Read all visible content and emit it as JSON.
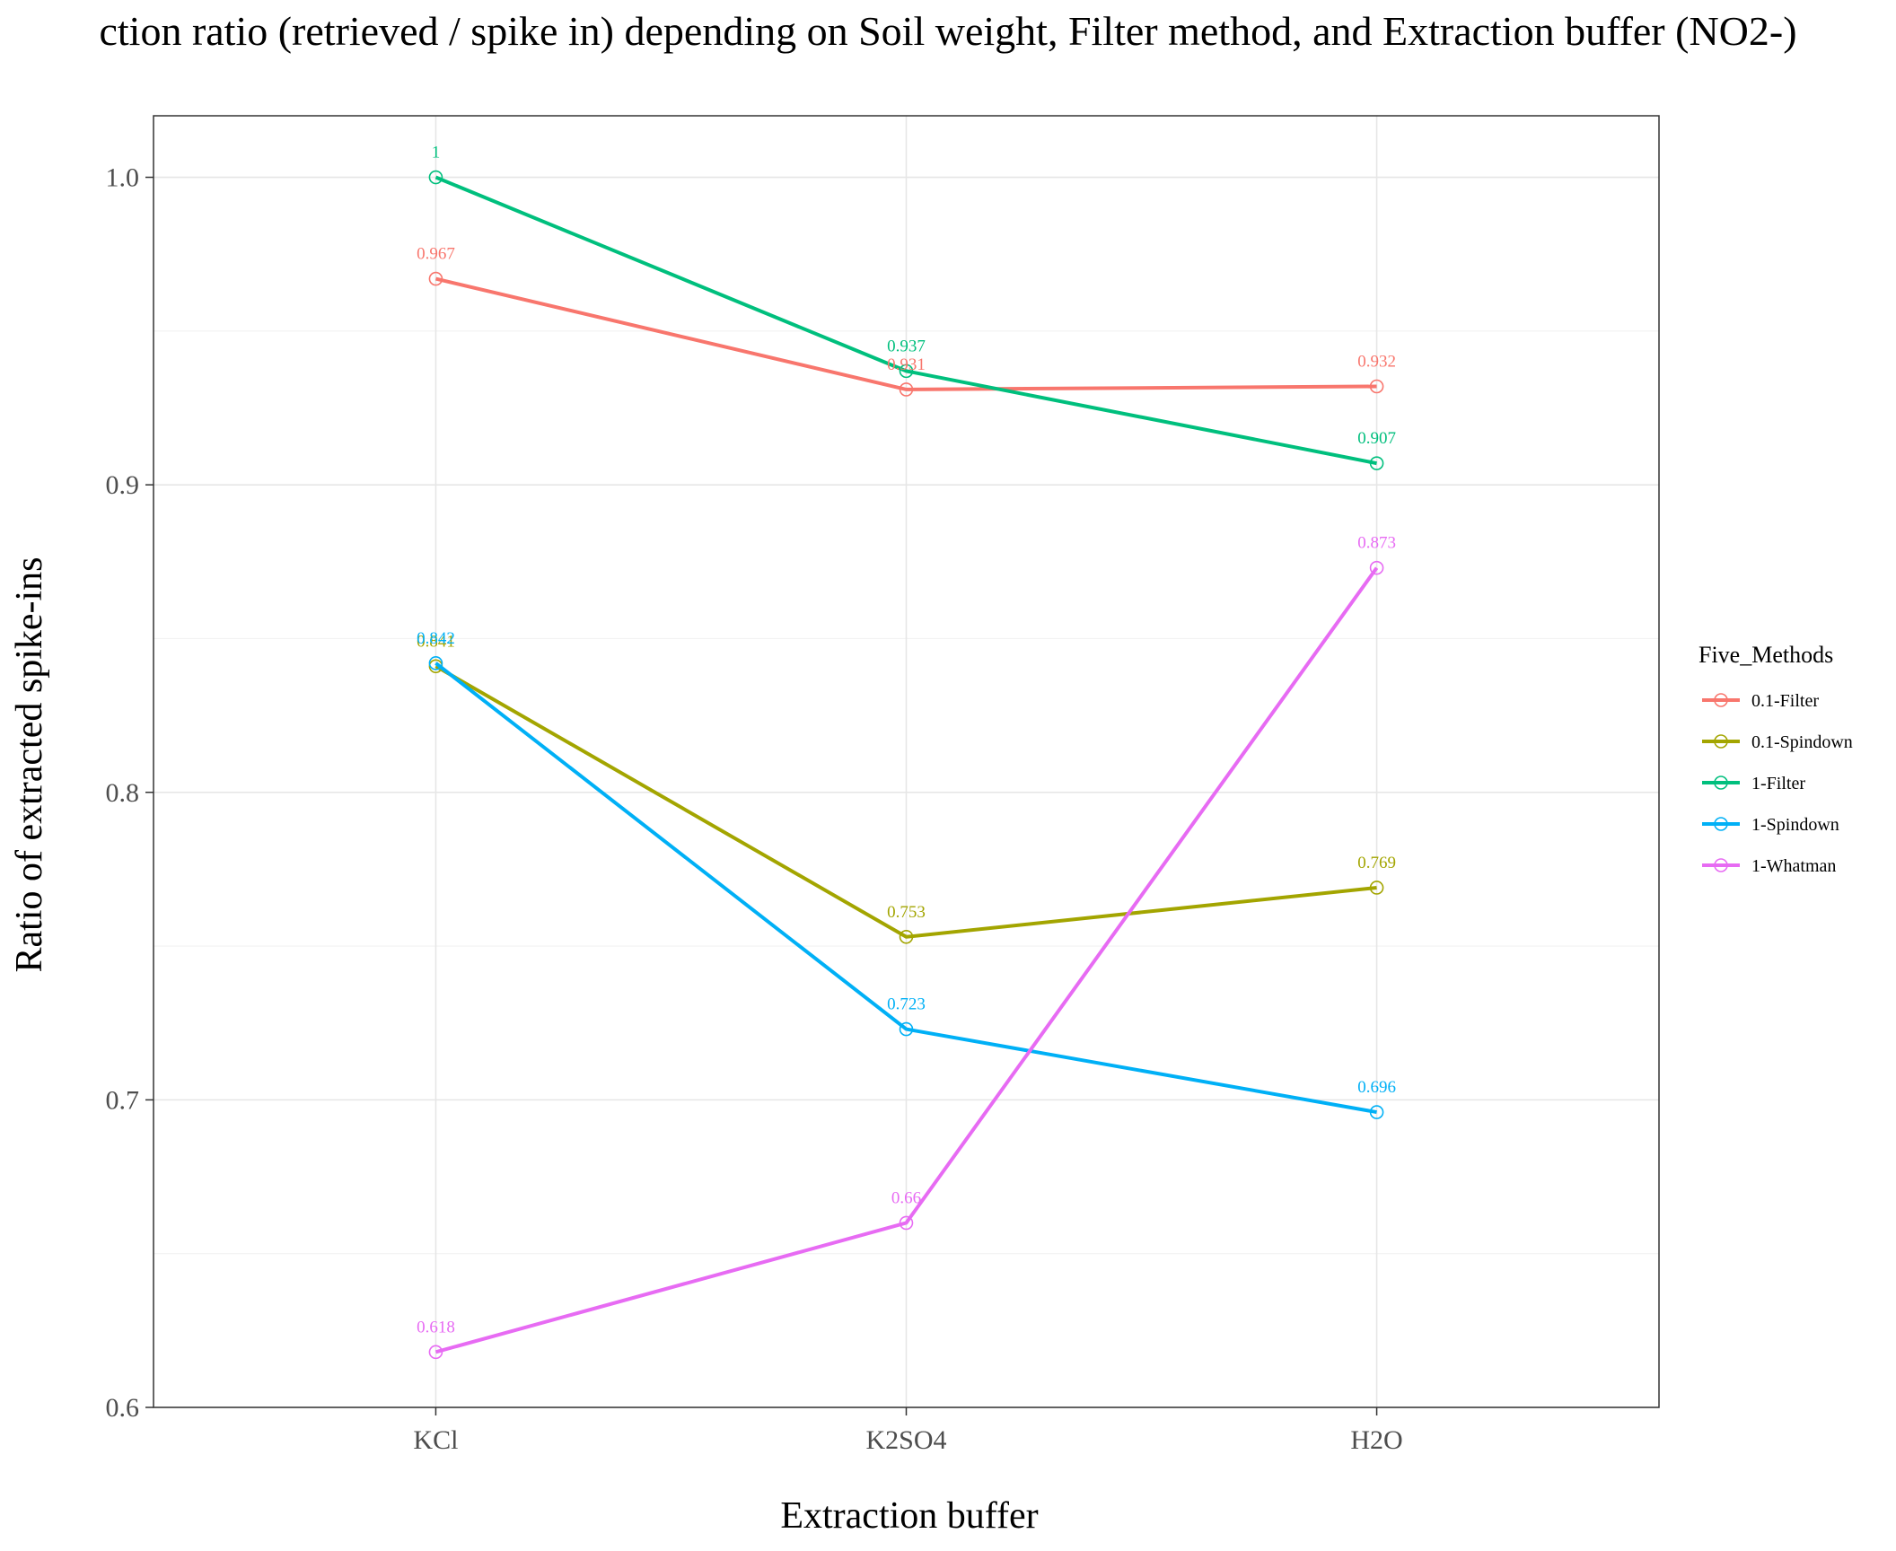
{
  "chart_data": {
    "type": "line",
    "title": "ction ratio (retrieved / spike in) depending on Soil weight, Filter method, and Extraction buffer (NO2-)",
    "xlabel": "Extraction buffer",
    "ylabel": "Ratio of extracted spike-ins",
    "categories": [
      "KCl",
      "K2SO4",
      "H2O"
    ],
    "ylim": [
      0.6,
      1.02
    ],
    "yticks": [
      0.6,
      0.7,
      0.8,
      0.9,
      1.0
    ],
    "ytick_labels": [
      "0.6",
      "0.7",
      "0.8",
      "0.9",
      "1.0"
    ],
    "grid": true,
    "legend": {
      "title": "Five_Methods",
      "position": "right"
    },
    "series": [
      {
        "name": "0.1-Filter",
        "color": "#F8766D",
        "values": [
          0.967,
          0.931,
          0.932
        ],
        "labels": [
          "0.967",
          "0.931",
          "0.932"
        ]
      },
      {
        "name": "0.1-Spindown",
        "color": "#A3A500",
        "values": [
          0.841,
          0.753,
          0.769
        ],
        "labels": [
          "0.841",
          "0.753",
          "0.769"
        ]
      },
      {
        "name": "1-Filter",
        "color": "#00BF7D",
        "values": [
          1.0,
          0.937,
          0.907
        ],
        "labels": [
          "1",
          "0.937",
          "0.907"
        ]
      },
      {
        "name": "1-Spindown",
        "color": "#00B0F6",
        "values": [
          0.842,
          0.723,
          0.696
        ],
        "labels": [
          "0.842",
          "0.723",
          "0.696"
        ]
      },
      {
        "name": "1-Whatman",
        "color": "#E76BF3",
        "values": [
          0.618,
          0.66,
          0.873
        ],
        "labels": [
          "0.618",
          "0.66",
          "0.873"
        ]
      }
    ]
  }
}
